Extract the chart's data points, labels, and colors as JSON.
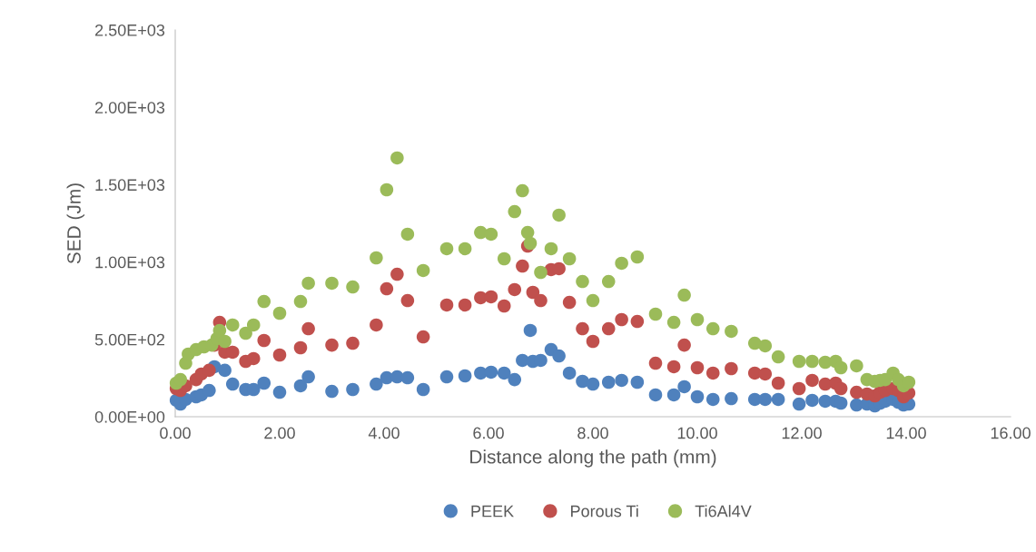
{
  "chart_data": {
    "type": "scatter",
    "xlabel": "Distance along the path (mm)",
    "ylabel": "SED (Jm)",
    "xlim": [
      0,
      16
    ],
    "ylim": [
      0,
      2500
    ],
    "xticks": [
      {
        "value": 0,
        "label": "0.00"
      },
      {
        "value": 2,
        "label": "2.00"
      },
      {
        "value": 4,
        "label": "4.00"
      },
      {
        "value": 6,
        "label": "6.00"
      },
      {
        "value": 8,
        "label": "8.00"
      },
      {
        "value": 10,
        "label": "10.00"
      },
      {
        "value": 12,
        "label": "12.00"
      },
      {
        "value": 14,
        "label": "14.00"
      },
      {
        "value": 16,
        "label": "16.00"
      }
    ],
    "yticks": [
      {
        "value": 0,
        "label": "0.00E+00"
      },
      {
        "value": 500,
        "label": "5.00E+02"
      },
      {
        "value": 1000,
        "label": "1.00E+03"
      },
      {
        "value": 1500,
        "label": "1.50E+03"
      },
      {
        "value": 2000,
        "label": "2.00E+03"
      },
      {
        "value": 2500,
        "label": "2.50E+03"
      }
    ],
    "grid": false,
    "legend": "bottom",
    "marker": "circle",
    "series": [
      {
        "name": "PEEK",
        "color": "#4f81bd",
        "x": [
          0.02,
          0.1,
          0.2,
          0.4,
          0.5,
          0.65,
          0.75,
          0.95,
          1.1,
          1.35,
          1.5,
          1.7,
          2.0,
          2.4,
          2.55,
          3.0,
          3.4,
          3.85,
          4.05,
          4.25,
          4.45,
          4.75,
          5.2,
          5.55,
          5.85,
          6.05,
          6.3,
          6.5,
          6.65,
          6.8,
          6.85,
          7.0,
          7.2,
          7.35,
          7.55,
          7.8,
          8.0,
          8.3,
          8.55,
          8.85,
          9.2,
          9.55,
          9.75,
          10.0,
          10.3,
          10.65,
          11.1,
          11.3,
          11.55,
          11.95,
          12.2,
          12.45,
          12.65,
          12.75,
          13.05,
          13.25,
          13.4,
          13.5,
          13.6,
          13.75,
          13.85,
          13.95,
          14.05
        ],
        "values": [
          106,
          82,
          112,
          129,
          141,
          170,
          323,
          300,
          211,
          176,
          176,
          217,
          158,
          200,
          258,
          164,
          176,
          211,
          252,
          258,
          252,
          176,
          258,
          264,
          282,
          288,
          282,
          240,
          364,
          558,
          358,
          364,
          434,
          393,
          282,
          229,
          211,
          223,
          235,
          223,
          141,
          141,
          194,
          129,
          112,
          117,
          112,
          112,
          112,
          82,
          106,
          100,
          100,
          88,
          76,
          82,
          70,
          88,
          100,
          112,
          94,
          76,
          82
        ]
      },
      {
        "name": "Porous Ti",
        "color": "#c0504d",
        "x": [
          0.02,
          0.1,
          0.2,
          0.4,
          0.5,
          0.65,
          0.75,
          0.8,
          0.85,
          0.95,
          1.1,
          1.35,
          1.5,
          1.7,
          2.0,
          2.4,
          2.55,
          3.0,
          3.4,
          3.85,
          4.05,
          4.25,
          4.45,
          4.75,
          5.2,
          5.55,
          5.85,
          6.05,
          6.3,
          6.5,
          6.65,
          6.75,
          6.85,
          7.0,
          7.2,
          7.35,
          7.55,
          7.8,
          8.0,
          8.3,
          8.55,
          8.85,
          9.2,
          9.55,
          9.75,
          10.0,
          10.3,
          10.65,
          11.1,
          11.3,
          11.55,
          11.95,
          12.2,
          12.45,
          12.65,
          12.75,
          13.05,
          13.25,
          13.4,
          13.5,
          13.6,
          13.75,
          13.85,
          13.95,
          14.05
        ],
        "values": [
          182,
          170,
          200,
          240,
          276,
          300,
          463,
          null,
          610,
          417,
          417,
          358,
          376,
          493,
          399,
          446,
          569,
          463,
          475,
          593,
          827,
          921,
          751,
          516,
          722,
          722,
          769,
          775,
          716,
          822,
          974,
          1103,
          804,
          751,
          951,
          957,
          739,
          569,
          487,
          569,
          628,
          616,
          346,
          323,
          463,
          317,
          282,
          311,
          282,
          276,
          217,
          182,
          235,
          211,
          217,
          182,
          158,
          147,
          135,
          158,
          170,
          182,
          170,
          129,
          153
        ]
      },
      {
        "name": "Ti6Al4V",
        "color": "#9bbb59",
        "x": [
          0.02,
          0.1,
          0.2,
          0.25,
          0.4,
          0.55,
          0.7,
          0.8,
          0.85,
          0.95,
          1.1,
          1.35,
          1.5,
          1.7,
          2.0,
          2.4,
          2.55,
          3.0,
          3.4,
          3.85,
          4.05,
          4.25,
          4.45,
          4.75,
          5.2,
          5.55,
          5.85,
          6.05,
          6.3,
          6.5,
          6.65,
          6.75,
          6.8,
          7.0,
          7.2,
          7.35,
          7.55,
          7.8,
          8.0,
          8.3,
          8.55,
          8.85,
          9.2,
          9.55,
          9.75,
          10.0,
          10.3,
          10.65,
          11.1,
          11.3,
          11.55,
          11.95,
          12.2,
          12.45,
          12.65,
          12.75,
          13.05,
          13.25,
          13.4,
          13.5,
          13.6,
          13.75,
          13.85,
          13.95,
          14.05
        ],
        "values": [
          217,
          240,
          346,
          405,
          434,
          452,
          463,
          505,
          557,
          487,
          593,
          540,
          593,
          745,
          669,
          745,
          863,
          863,
          839,
          1027,
          1467,
          1673,
          1180,
          945,
          1086,
          1086,
          1191,
          1180,
          1021,
          1326,
          1461,
          1191,
          1121,
          933,
          1086,
          1303,
          1021,
          874,
          751,
          874,
          992,
          1033,
          663,
          610,
          786,
          628,
          569,
          552,
          475,
          458,
          387,
          358,
          358,
          352,
          358,
          317,
          329,
          240,
          229,
          235,
          240,
          282,
          240,
          200,
          223
        ]
      }
    ]
  }
}
